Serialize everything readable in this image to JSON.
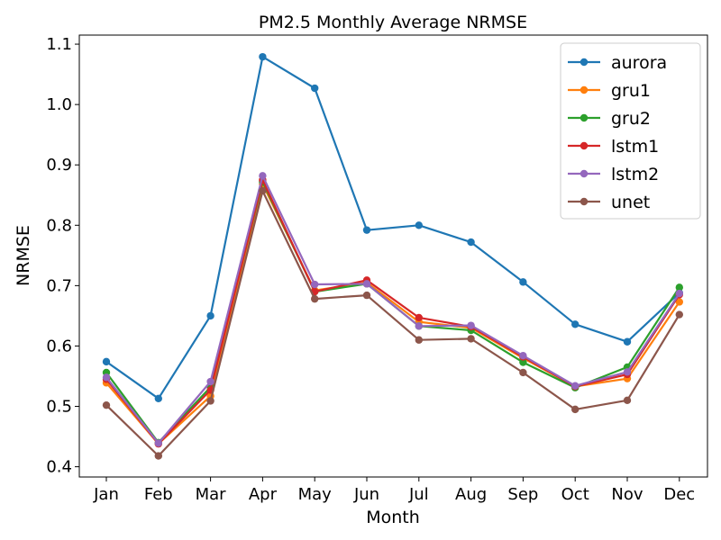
{
  "chart_data": {
    "type": "line",
    "title": "PM2.5 Monthly Average NRMSE",
    "xlabel": "Month",
    "ylabel": "NRMSE",
    "categories": [
      "Jan",
      "Feb",
      "Mar",
      "Apr",
      "May",
      "Jun",
      "Jul",
      "Aug",
      "Sep",
      "Oct",
      "Nov",
      "Dec"
    ],
    "ylim": [
      0.383,
      1.115
    ],
    "yticks": [
      0.4,
      0.5,
      0.6,
      0.7,
      0.8,
      0.9,
      1.0,
      1.1
    ],
    "ytick_labels": [
      "0.4",
      "0.5",
      "0.6",
      "0.7",
      "0.8",
      "0.9",
      "1.0",
      "1.1"
    ],
    "grid": false,
    "legend_position": "top-right",
    "series": [
      {
        "name": "aurora",
        "color": "#1f77b4",
        "values": [
          0.574,
          0.513,
          0.65,
          1.079,
          1.027,
          0.792,
          0.8,
          0.772,
          0.706,
          0.636,
          0.607,
          0.688
        ]
      },
      {
        "name": "gru1",
        "color": "#ff7f0e",
        "values": [
          0.539,
          0.438,
          0.517,
          0.868,
          0.692,
          0.705,
          0.64,
          0.63,
          0.58,
          0.533,
          0.546,
          0.673
        ]
      },
      {
        "name": "gru2",
        "color": "#2ca02c",
        "values": [
          0.556,
          0.44,
          0.532,
          0.872,
          0.69,
          0.703,
          0.633,
          0.626,
          0.573,
          0.531,
          0.565,
          0.697
        ]
      },
      {
        "name": "lstm1",
        "color": "#d62728",
        "values": [
          0.545,
          0.438,
          0.527,
          0.875,
          0.69,
          0.709,
          0.647,
          0.632,
          0.582,
          0.533,
          0.553,
          0.685
        ]
      },
      {
        "name": "lstm2",
        "color": "#9467bd",
        "values": [
          0.548,
          0.439,
          0.541,
          0.882,
          0.702,
          0.703,
          0.633,
          0.634,
          0.584,
          0.534,
          0.557,
          0.687
        ]
      },
      {
        "name": "unet",
        "color": "#8c564b",
        "values": [
          0.502,
          0.418,
          0.509,
          0.857,
          0.678,
          0.684,
          0.61,
          0.612,
          0.556,
          0.495,
          0.51,
          0.652
        ]
      }
    ]
  }
}
